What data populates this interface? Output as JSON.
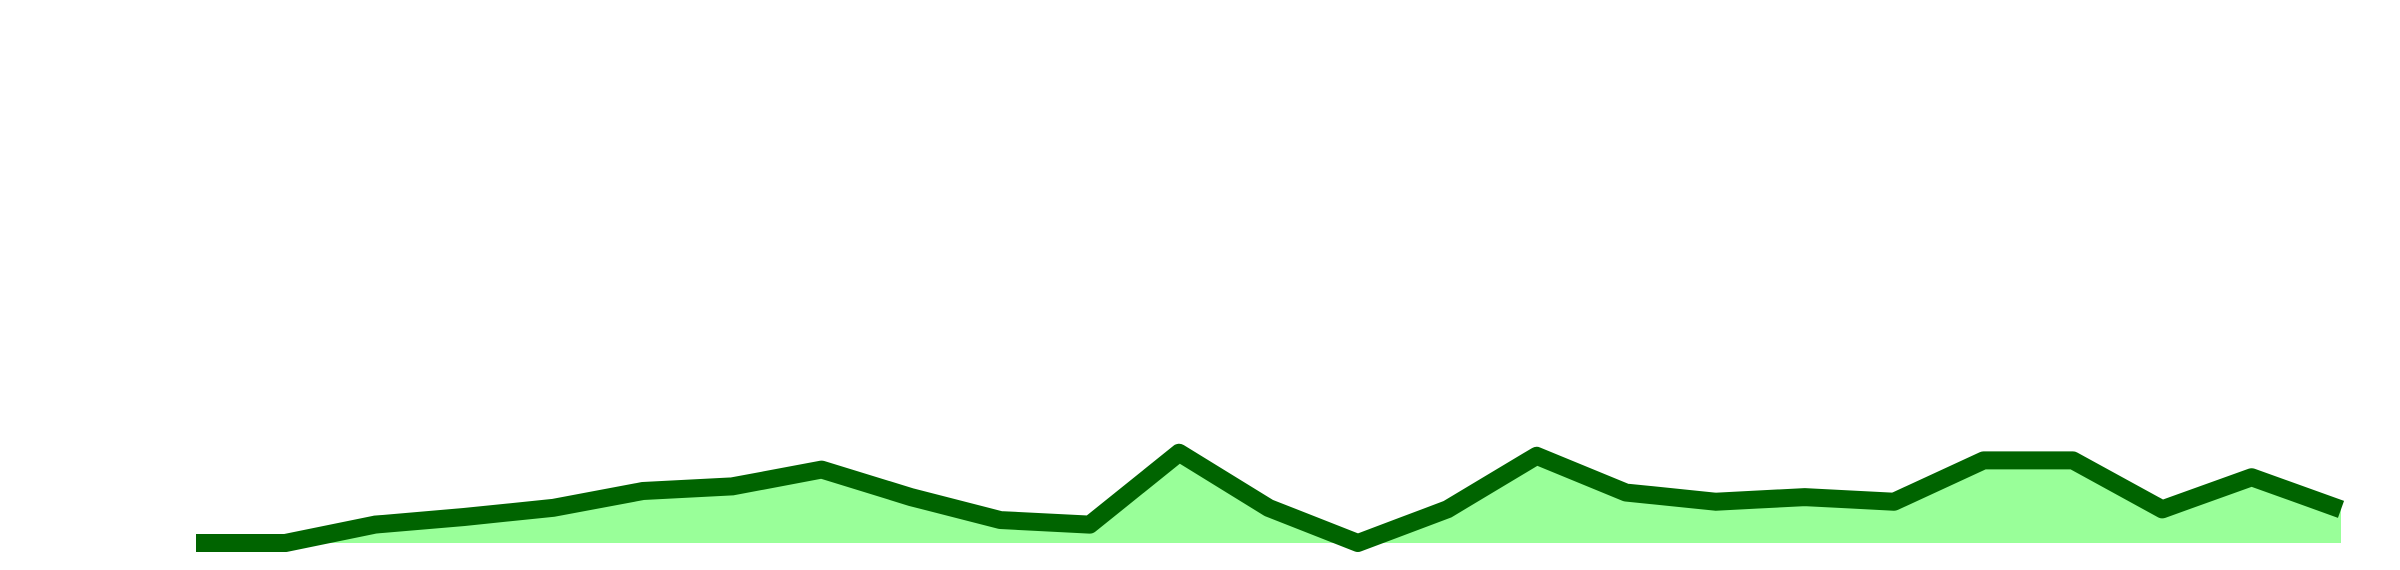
{
  "chart_data": {
    "type": "area",
    "values": [
      0,
      0,
      12,
      17,
      23,
      34,
      37,
      48,
      30,
      15,
      12,
      59,
      23,
      0,
      22,
      57,
      33,
      27,
      30,
      27,
      54,
      54,
      22,
      43,
      22
    ],
    "color": "#006400",
    "fill": "#99ff99",
    "ylim": [
      0,
      355
    ]
  }
}
